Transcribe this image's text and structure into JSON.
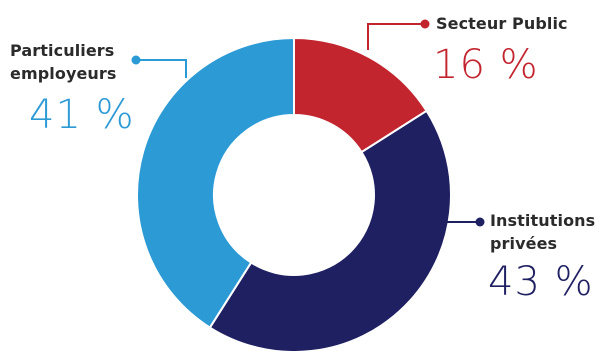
{
  "chart_data": {
    "type": "pie",
    "donut": true,
    "slices": [
      {
        "label": "Secteur Public",
        "value": 16,
        "value_label": "16 %",
        "color": "#c3252f"
      },
      {
        "label": "Institutions privées",
        "label_lines": [
          "Institutions",
          "privées"
        ],
        "value": 43,
        "value_label": "43 %",
        "color": "#1f2062"
      },
      {
        "label": "Particuliers employeurs",
        "label_lines": [
          "Particuliers",
          "employeurs"
        ],
        "value": 41,
        "value_label": "41 %",
        "color": "#2b9ad5"
      }
    ]
  }
}
